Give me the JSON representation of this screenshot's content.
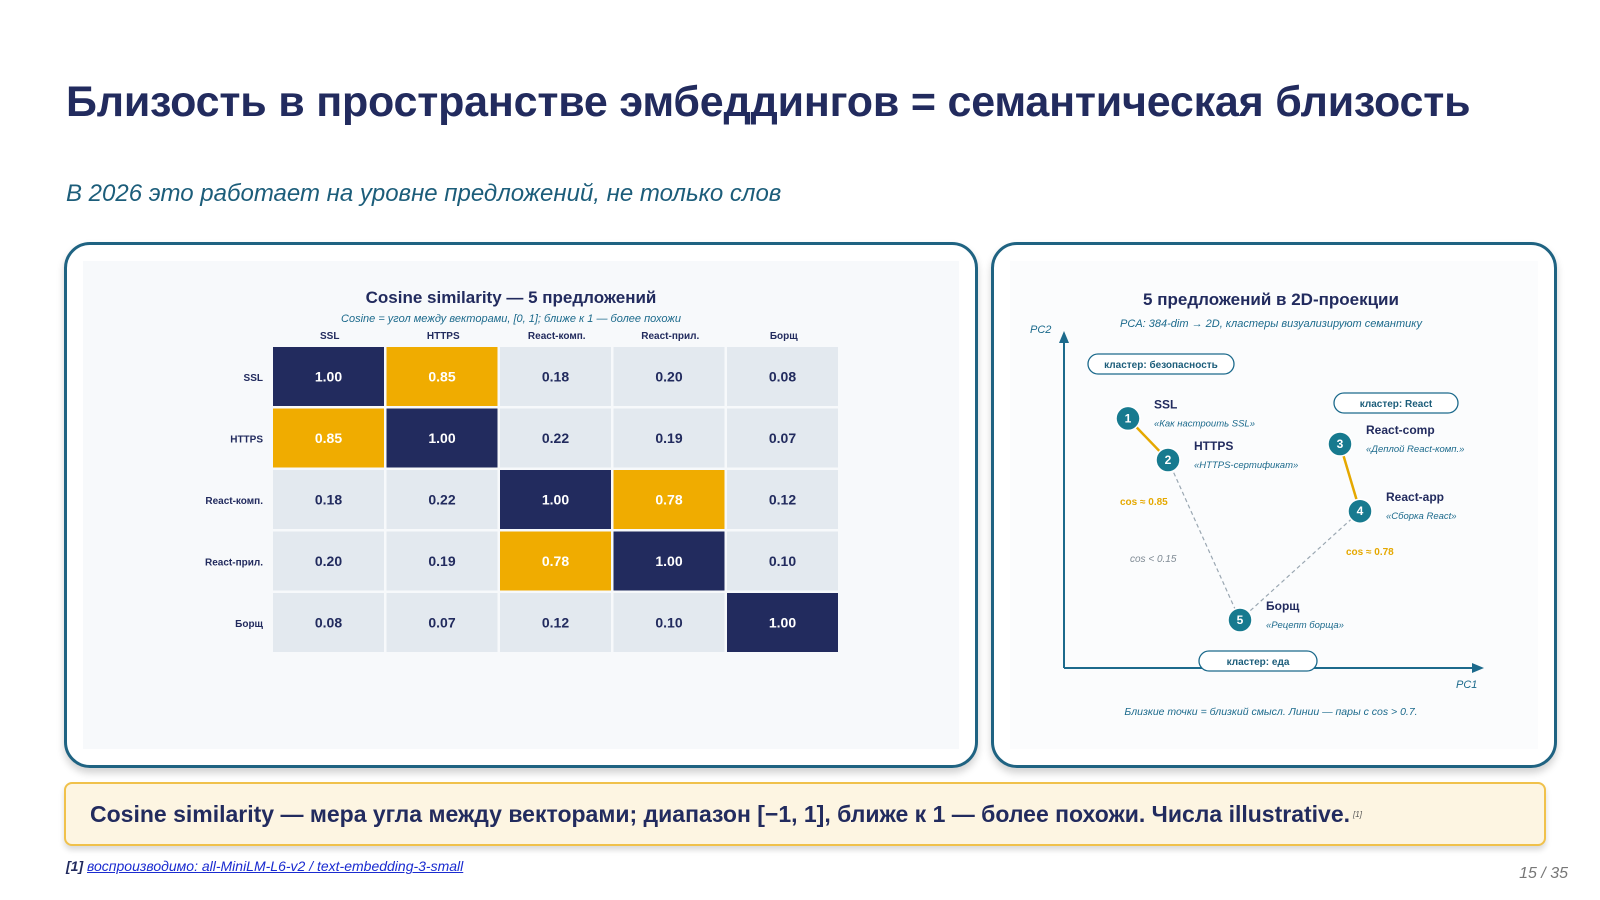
{
  "slide": {
    "title": "Близость в пространстве эмбеддингов = семантическая близость",
    "subtitle": "В 2026 это работает на уровне предложений, не только слов",
    "callout_text": "Cosine similarity — мера угла между векторами; диапазон [−1, 1], ближе к 1 — более похожи. Числа illustrative.",
    "callout_ref": "[1]",
    "footnote_ref": "[1]",
    "footnote_link": "воспроизводимо: all-MiniLM-L6-v2 / text-embedding-3-small",
    "page_number": "15 / 35"
  },
  "colors": {
    "title": "#222b5e",
    "subtitle": "#1c5d7a",
    "panel_border": "#1f6382",
    "diag": "#222b5e",
    "high": "#f0ac00",
    "low": "#e3e9ef",
    "point": "#177a8f",
    "callout_bg": "#fdf5e2",
    "callout_border": "#f0c14b"
  },
  "chart_data": [
    {
      "type": "heatmap",
      "title": "Cosine similarity — 5 предложений",
      "subtitle": "Cosine = угол между векторами, [0, 1]; ближе к 1 — более похожи",
      "columns": [
        "SSL",
        "HTTPS",
        "React-комп.",
        "React-прил.",
        "Борщ"
      ],
      "rows": [
        "SSL",
        "HTTPS",
        "React-комп.",
        "React-прил.",
        "Борщ"
      ],
      "values": [
        [
          1.0,
          0.85,
          0.18,
          0.2,
          0.08
        ],
        [
          0.85,
          1.0,
          0.22,
          0.19,
          0.07
        ],
        [
          0.18,
          0.22,
          1.0,
          0.78,
          0.12
        ],
        [
          0.2,
          0.19,
          0.78,
          1.0,
          0.1
        ],
        [
          0.08,
          0.07,
          0.12,
          0.1,
          1.0
        ]
      ],
      "cell_labels": [
        [
          "1.00",
          "0.85",
          "0.18",
          "0.20",
          "0.08"
        ],
        [
          "0.85",
          "1.00",
          "0.22",
          "0.19",
          "0.07"
        ],
        [
          "0.18",
          "0.22",
          "1.00",
          "0.78",
          "0.12"
        ],
        [
          "0.20",
          "0.19",
          "0.78",
          "1.00",
          "0.10"
        ],
        [
          "0.08",
          "0.07",
          "0.12",
          "0.10",
          "1.00"
        ]
      ]
    },
    {
      "type": "scatter",
      "title": "5 предложений в 2D-проекции",
      "subtitle": "PCA: 384-dim → 2D, кластеры визуализируют семантику",
      "xlabel": "PC1",
      "ylabel": "PC2",
      "xlim": [
        0,
        10
      ],
      "ylim": [
        0,
        10
      ],
      "grid": false,
      "points": [
        {
          "id": "1",
          "label": "SSL",
          "sentence": "«Как настроить SSL»",
          "x": 1.6,
          "y": 7.8
        },
        {
          "id": "2",
          "label": "HTTPS",
          "sentence": "«HTTPS-сертификат»",
          "x": 2.6,
          "y": 6.5
        },
        {
          "id": "3",
          "label": "React-comp",
          "sentence": "«Деплой React-комп.»",
          "x": 6.9,
          "y": 7.0
        },
        {
          "id": "4",
          "label": "React-app",
          "sentence": "«Сборка React»",
          "x": 7.4,
          "y": 4.9
        },
        {
          "id": "5",
          "label": "Борщ",
          "sentence": "«Рецепт борща»",
          "x": 4.4,
          "y": 1.5
        }
      ],
      "links": [
        {
          "from": "1",
          "to": "2",
          "style": "solid",
          "label": "cos ≈ 0.85"
        },
        {
          "from": "3",
          "to": "4",
          "style": "solid",
          "label": "cos ≈ 0.78"
        },
        {
          "from": "2",
          "to": "5",
          "style": "dashed",
          "label": "cos < 0.15"
        },
        {
          "from": "5",
          "to": "4",
          "style": "dashed",
          "label": ""
        }
      ],
      "clusters": [
        "кластер: безопасность",
        "кластер: React",
        "кластер: еда"
      ],
      "caption": "Близкие точки = близкий смысл. Линии — пары с cos > 0.7."
    }
  ]
}
